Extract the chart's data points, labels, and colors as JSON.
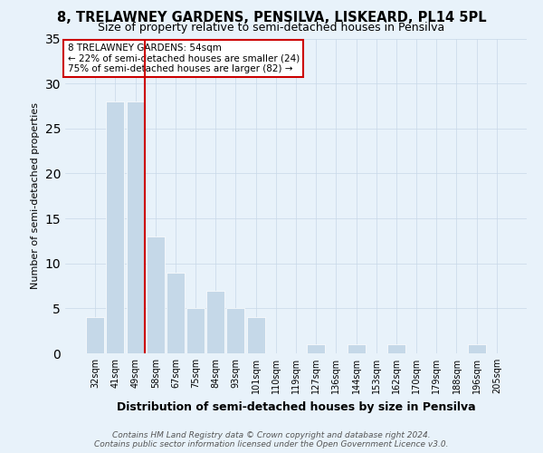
{
  "title": "8, TRELAWNEY GARDENS, PENSILVA, LISKEARD, PL14 5PL",
  "subtitle": "Size of property relative to semi-detached houses in Pensilva",
  "xlabel": "Distribution of semi-detached houses by size in Pensilva",
  "ylabel": "Number of semi-detached properties",
  "categories": [
    "32sqm",
    "41sqm",
    "49sqm",
    "58sqm",
    "67sqm",
    "75sqm",
    "84sqm",
    "93sqm",
    "101sqm",
    "110sqm",
    "119sqm",
    "127sqm",
    "136sqm",
    "144sqm",
    "153sqm",
    "162sqm",
    "170sqm",
    "179sqm",
    "188sqm",
    "196sqm",
    "205sqm"
  ],
  "values": [
    4,
    28,
    28,
    13,
    9,
    5,
    7,
    5,
    4,
    0,
    0,
    1,
    0,
    1,
    0,
    1,
    0,
    0,
    0,
    1,
    0
  ],
  "bar_color": "#c5d8e8",
  "bar_edge_color": "#ffffff",
  "grid_color": "#c8d8e8",
  "background_color": "#e8f2fa",
  "annotation_text": "8 TRELAWNEY GARDENS: 54sqm\n← 22% of semi-detached houses are smaller (24)\n75% of semi-detached houses are larger (82) →",
  "annotation_box_color": "#ffffff",
  "annotation_box_edge": "#cc0000",
  "vline_color": "#cc0000",
  "footer": "Contains HM Land Registry data © Crown copyright and database right 2024.\nContains public sector information licensed under the Open Government Licence v3.0.",
  "ylim": [
    0,
    35
  ],
  "title_fontsize": 10.5,
  "subtitle_fontsize": 9,
  "ylabel_fontsize": 8,
  "xlabel_fontsize": 9,
  "tick_fontsize": 7,
  "footer_fontsize": 6.5
}
